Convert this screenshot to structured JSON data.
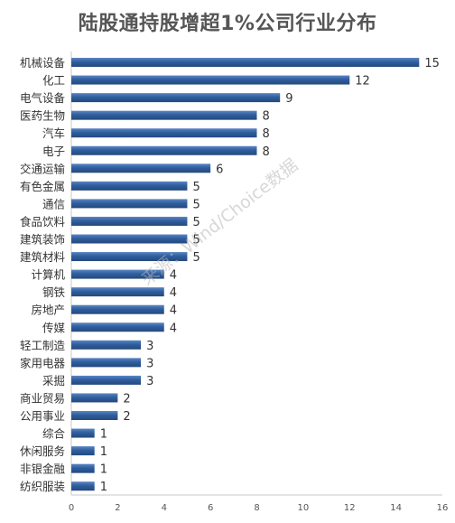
{
  "title": "陆股通持股增超1%公司行业分布",
  "watermark": "来源：Wind/Choice数据",
  "colors": {
    "bar": "#2f5e9e",
    "bar_highlight": "#5b86c4",
    "axis": "#c8c8c8",
    "grid": "#e4e4e4",
    "text": "#333333"
  },
  "chart_data": {
    "type": "bar",
    "orientation": "horizontal",
    "title": "陆股通持股增超1%公司行业分布",
    "categories": [
      "机械设备",
      "化工",
      "电气设备",
      "医药生物",
      "汽车",
      "电子",
      "交通运输",
      "有色金属",
      "通信",
      "食品饮料",
      "建筑装饰",
      "建筑材料",
      "计算机",
      "钢铁",
      "房地产",
      "传媒",
      "轻工制造",
      "家用电器",
      "采掘",
      "商业贸易",
      "公用事业",
      "综合",
      "休闲服务",
      "非银金融",
      "纺织服装"
    ],
    "values": [
      15,
      12,
      9,
      8,
      8,
      8,
      6,
      5,
      5,
      5,
      5,
      5,
      4,
      4,
      4,
      4,
      3,
      3,
      3,
      2,
      2,
      1,
      1,
      1,
      1
    ],
    "xlim": [
      0,
      16
    ],
    "xticks": [
      0,
      2,
      4,
      6,
      8,
      10,
      12,
      14,
      16
    ],
    "grid": false,
    "data_labels": true,
    "legend": "none"
  }
}
